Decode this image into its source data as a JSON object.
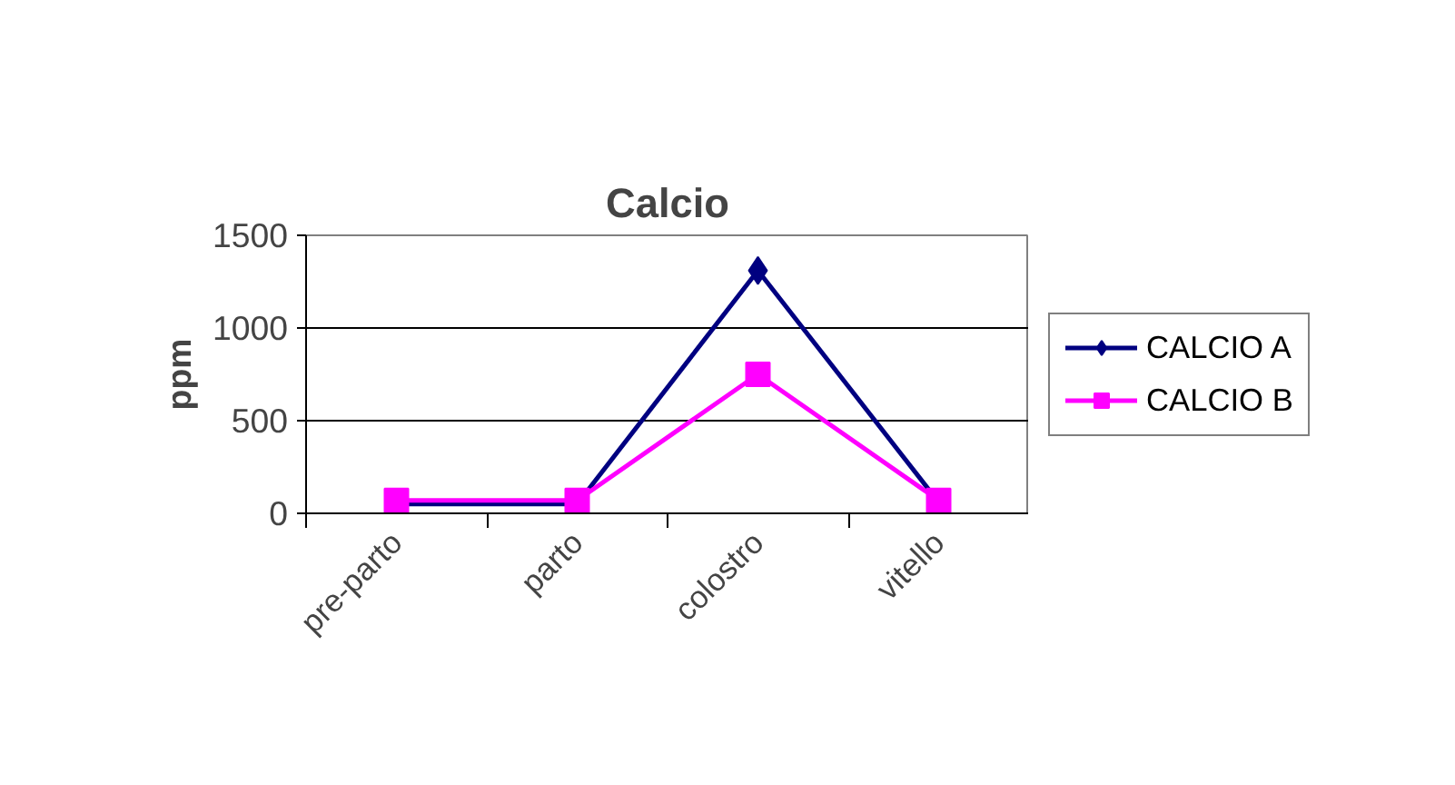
{
  "chart_data": {
    "type": "line",
    "title": "Calcio",
    "ylabel": "ppm",
    "categories": [
      "pre-parto",
      "parto",
      "colostro",
      "vitello"
    ],
    "series": [
      {
        "name": "CALCIO A",
        "color": "#000080",
        "marker": "diamond",
        "values": [
          50,
          50,
          1310,
          60
        ]
      },
      {
        "name": "CALCIO B",
        "color": "#ff00ff",
        "marker": "square",
        "values": [
          70,
          70,
          750,
          70
        ]
      }
    ],
    "ylim": [
      0,
      1500
    ],
    "yticks": [
      0,
      500,
      1000,
      1500
    ],
    "grid": "y",
    "legend": "right",
    "line_style": "solid"
  }
}
